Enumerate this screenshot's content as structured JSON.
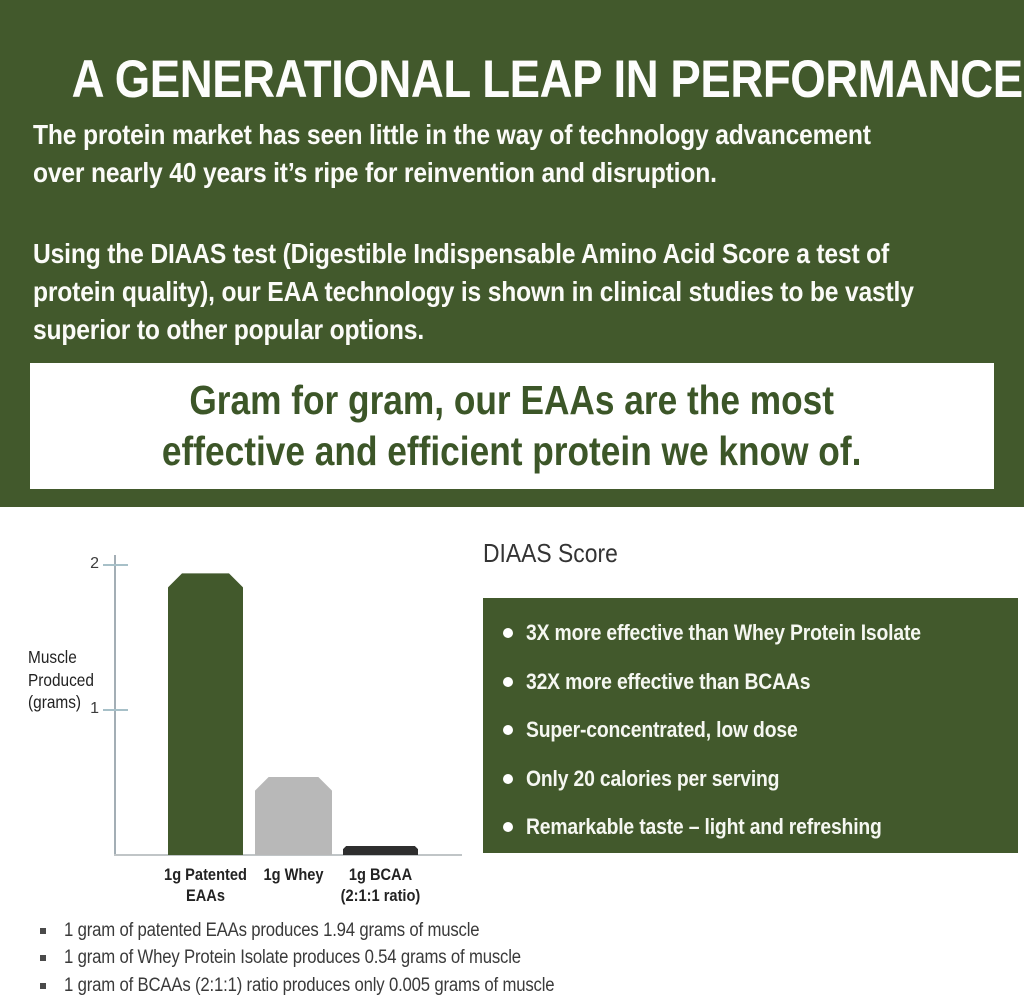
{
  "hero": {
    "title": "A GENERATIONAL LEAP IN PERFORMANCE",
    "paragraph1": "The protein market has seen little in the way of technology advancement\nover nearly 40 years it’s ripe for reinvention and disruption.",
    "paragraph2": "Using the DIAAS test (Digestible Indispensable Amino Acid Score a test of\nprotein quality), our EAA technology is shown in clinical studies to be vastly\nsuperior to other popular options.",
    "quote": "Gram for gram, our EAAs are the most\neffective and efficient protein we know of."
  },
  "chart_data": {
    "type": "bar",
    "title": "",
    "xlabel": "",
    "ylabel": "Muscle\nProduced\n(grams)",
    "categories": [
      "1g Patented\nEAAs",
      "1g Whey",
      "1g BCAA\n(2:1:1 ratio)"
    ],
    "values": [
      1.94,
      0.54,
      0.005
    ],
    "yticks": [
      2,
      1
    ],
    "ylim": [
      0,
      1.97
    ],
    "grid": false,
    "legend": false,
    "bar_colors": [
      "#42592c",
      "#b8b8b8",
      "#2e2e2e"
    ]
  },
  "diaas": {
    "heading": "DIAAS Score",
    "bullets": [
      "3X more effective than Whey Protein Isolate",
      "32X more effective than BCAAs",
      "Super-concentrated, low dose",
      "Only 20 calories per serving",
      "Remarkable taste  – light and  refreshing"
    ]
  },
  "footnotes": [
    "1 gram of patented EAAs produces 1.94 grams of muscle",
    "1 gram of Whey Protein Isolate produces 0.54 grams of muscle",
    "1 gram of BCAAs (2:1:1) ratio produces only 0.005 grams of muscle"
  ],
  "colors": {
    "brand_green": "#42592c",
    "quote_text_green": "#3c5628",
    "whey_bar_gray": "#b8b8b8",
    "bcaa_bar_dark": "#2e2e2e",
    "axis_gray": "#a3aeb5",
    "tick_blue_gray": "#a7c0c8",
    "text_dark": "#343434",
    "white": "#ffffff"
  }
}
